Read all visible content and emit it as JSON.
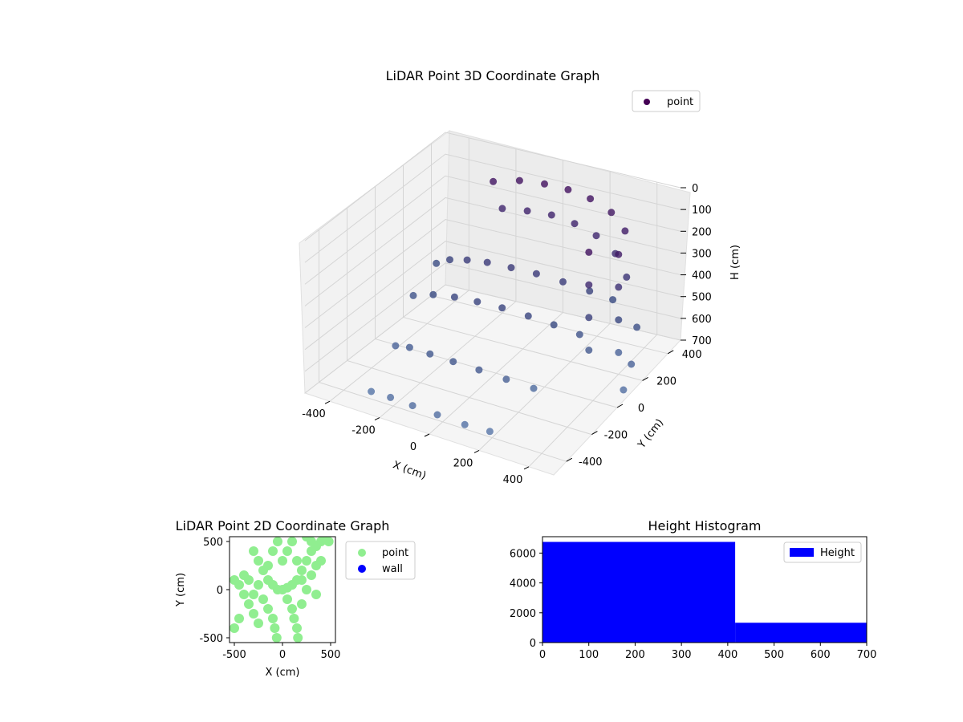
{
  "chart_data": [
    {
      "type": "scatter",
      "projection": "3d",
      "title": "LiDAR Point 3D Coordinate Graph",
      "xlabel": "X (cm)",
      "ylabel": "Y (cm)",
      "zlabel": "H (cm)",
      "xlim": [
        -500,
        500
      ],
      "ylim": [
        -500,
        500
      ],
      "zlim": [
        700,
        0
      ],
      "x_ticks": [
        -400,
        -200,
        0,
        200,
        400
      ],
      "y_ticks": [
        -400,
        -200,
        0,
        200,
        400
      ],
      "z_ticks": [
        0,
        100,
        200,
        300,
        400,
        500,
        600,
        700
      ],
      "grid": true,
      "legend": {
        "position": "top-right",
        "entries": [
          "point"
        ]
      },
      "colormap": "viridis",
      "series": [
        {
          "name": "point",
          "color": "#440154",
          "description_points": "concentric ring arcs of LiDAR returns plus near-vertical columns",
          "points": [
            [
              -420,
              300,
              480
            ],
            [
              -340,
              260,
              420
            ],
            [
              -250,
              230,
              380
            ],
            [
              -160,
              220,
              360
            ],
            [
              -60,
              220,
              355
            ],
            [
              40,
              230,
              360
            ],
            [
              140,
              250,
              380
            ],
            [
              230,
              290,
              420
            ],
            [
              300,
              340,
              470
            ],
            [
              -400,
              100,
              520
            ],
            [
              -300,
              70,
              470
            ],
            [
              -200,
              50,
              440
            ],
            [
              -100,
              40,
              425
            ],
            [
              0,
              45,
              425
            ],
            [
              100,
              60,
              440
            ],
            [
              190,
              90,
              470
            ],
            [
              270,
              140,
              520
            ],
            [
              -330,
              -150,
              600
            ],
            [
              -250,
              -190,
              560
            ],
            [
              -150,
              -220,
              540
            ],
            [
              -50,
              -230,
              535
            ],
            [
              50,
              -220,
              545
            ],
            [
              140,
              -180,
              580
            ],
            [
              220,
              -120,
              630
            ],
            [
              -300,
              -380,
              680
            ],
            [
              -200,
              -420,
              650
            ],
            [
              -100,
              -440,
              640
            ],
            [
              0,
              -440,
              645
            ],
            [
              100,
              -420,
              665
            ],
            [
              180,
              -380,
              690
            ],
            [
              -250,
              420,
              120
            ],
            [
              -150,
              440,
              100
            ],
            [
              -50,
              450,
              95
            ],
            [
              50,
              450,
              95
            ],
            [
              150,
              440,
              105
            ],
            [
              250,
              420,
              130
            ],
            [
              330,
              380,
              170
            ],
            [
              -200,
              400,
              220
            ],
            [
              -100,
              410,
              210
            ],
            [
              0,
              415,
              205
            ],
            [
              100,
              410,
              215
            ],
            [
              200,
              395,
              235
            ],
            [
              300,
              360,
              270
            ],
            [
              380,
              300,
              320
            ],
            [
              400,
              200,
              150
            ],
            [
              400,
              200,
              300
            ],
            [
              400,
              200,
              450
            ],
            [
              400,
              200,
              600
            ],
            [
              330,
              100,
              100
            ],
            [
              330,
              100,
              250
            ],
            [
              330,
              100,
              400
            ],
            [
              330,
              100,
              550
            ],
            [
              450,
              250,
              500
            ],
            [
              480,
              150,
              600
            ],
            [
              500,
              50,
              650
            ]
          ]
        }
      ]
    },
    {
      "type": "scatter",
      "title": "LiDAR Point 2D Coordinate Graph",
      "xlabel": "X (cm)",
      "ylabel": "Y (cm)",
      "xlim": [
        -550,
        550
      ],
      "ylim": [
        -550,
        550
      ],
      "x_ticks": [
        -500,
        0,
        500
      ],
      "y_ticks": [
        -500,
        0,
        500
      ],
      "grid": false,
      "legend": {
        "position": "outside-right",
        "entries": [
          "point",
          "wall"
        ]
      },
      "series": [
        {
          "name": "point",
          "color": "#90ee90",
          "points": [
            [
              -500,
              100
            ],
            [
              -450,
              50
            ],
            [
              -400,
              -50
            ],
            [
              -350,
              -150
            ],
            [
              -300,
              -250
            ],
            [
              -250,
              -350
            ],
            [
              -500,
              -400
            ],
            [
              -450,
              -300
            ],
            [
              -300,
              400
            ],
            [
              -250,
              300
            ],
            [
              -200,
              200
            ],
            [
              -150,
              100
            ],
            [
              -100,
              50
            ],
            [
              -50,
              0
            ],
            [
              0,
              0
            ],
            [
              50,
              20
            ],
            [
              100,
              50
            ],
            [
              150,
              100
            ],
            [
              200,
              200
            ],
            [
              250,
              300
            ],
            [
              300,
              400
            ],
            [
              350,
              450
            ],
            [
              400,
              500
            ],
            [
              450,
              550
            ],
            [
              480,
              500
            ],
            [
              400,
              300
            ],
            [
              300,
              150
            ],
            [
              200,
              100
            ],
            [
              250,
              0
            ],
            [
              350,
              -50
            ],
            [
              -350,
              100
            ],
            [
              -400,
              150
            ],
            [
              -200,
              -100
            ],
            [
              -150,
              -200
            ],
            [
              -100,
              -300
            ],
            [
              -80,
              -400
            ],
            [
              -60,
              -500
            ],
            [
              50,
              -100
            ],
            [
              100,
              -200
            ],
            [
              120,
              -300
            ],
            [
              150,
              -400
            ],
            [
              160,
              -500
            ],
            [
              0,
              300
            ],
            [
              50,
              400
            ],
            [
              100,
              500
            ],
            [
              -50,
              500
            ],
            [
              -100,
              400
            ],
            [
              200,
              -150
            ],
            [
              -250,
              50
            ],
            [
              -300,
              -50
            ],
            [
              -150,
              250
            ],
            [
              150,
              300
            ],
            [
              350,
              250
            ],
            [
              300,
              500
            ],
            [
              250,
              550
            ]
          ]
        },
        {
          "name": "wall",
          "color": "#0000ff",
          "points": []
        }
      ]
    },
    {
      "type": "bar",
      "title": "Height Histogram",
      "xlabel": "",
      "ylabel": "",
      "xlim": [
        0,
        700
      ],
      "ylim": [
        0,
        7100
      ],
      "x_ticks": [
        0,
        100,
        200,
        300,
        400,
        500,
        600,
        700
      ],
      "y_ticks": [
        0,
        2000,
        4000,
        6000
      ],
      "grid": false,
      "legend": {
        "position": "top-right",
        "entries": [
          "Height"
        ]
      },
      "series": [
        {
          "name": "Height",
          "color": "#0000ff",
          "bins": [
            {
              "x0": 0,
              "x1": 416,
              "count": 6750
            },
            {
              "x0": 416,
              "x1": 700,
              "count": 1330
            }
          ]
        }
      ]
    }
  ]
}
